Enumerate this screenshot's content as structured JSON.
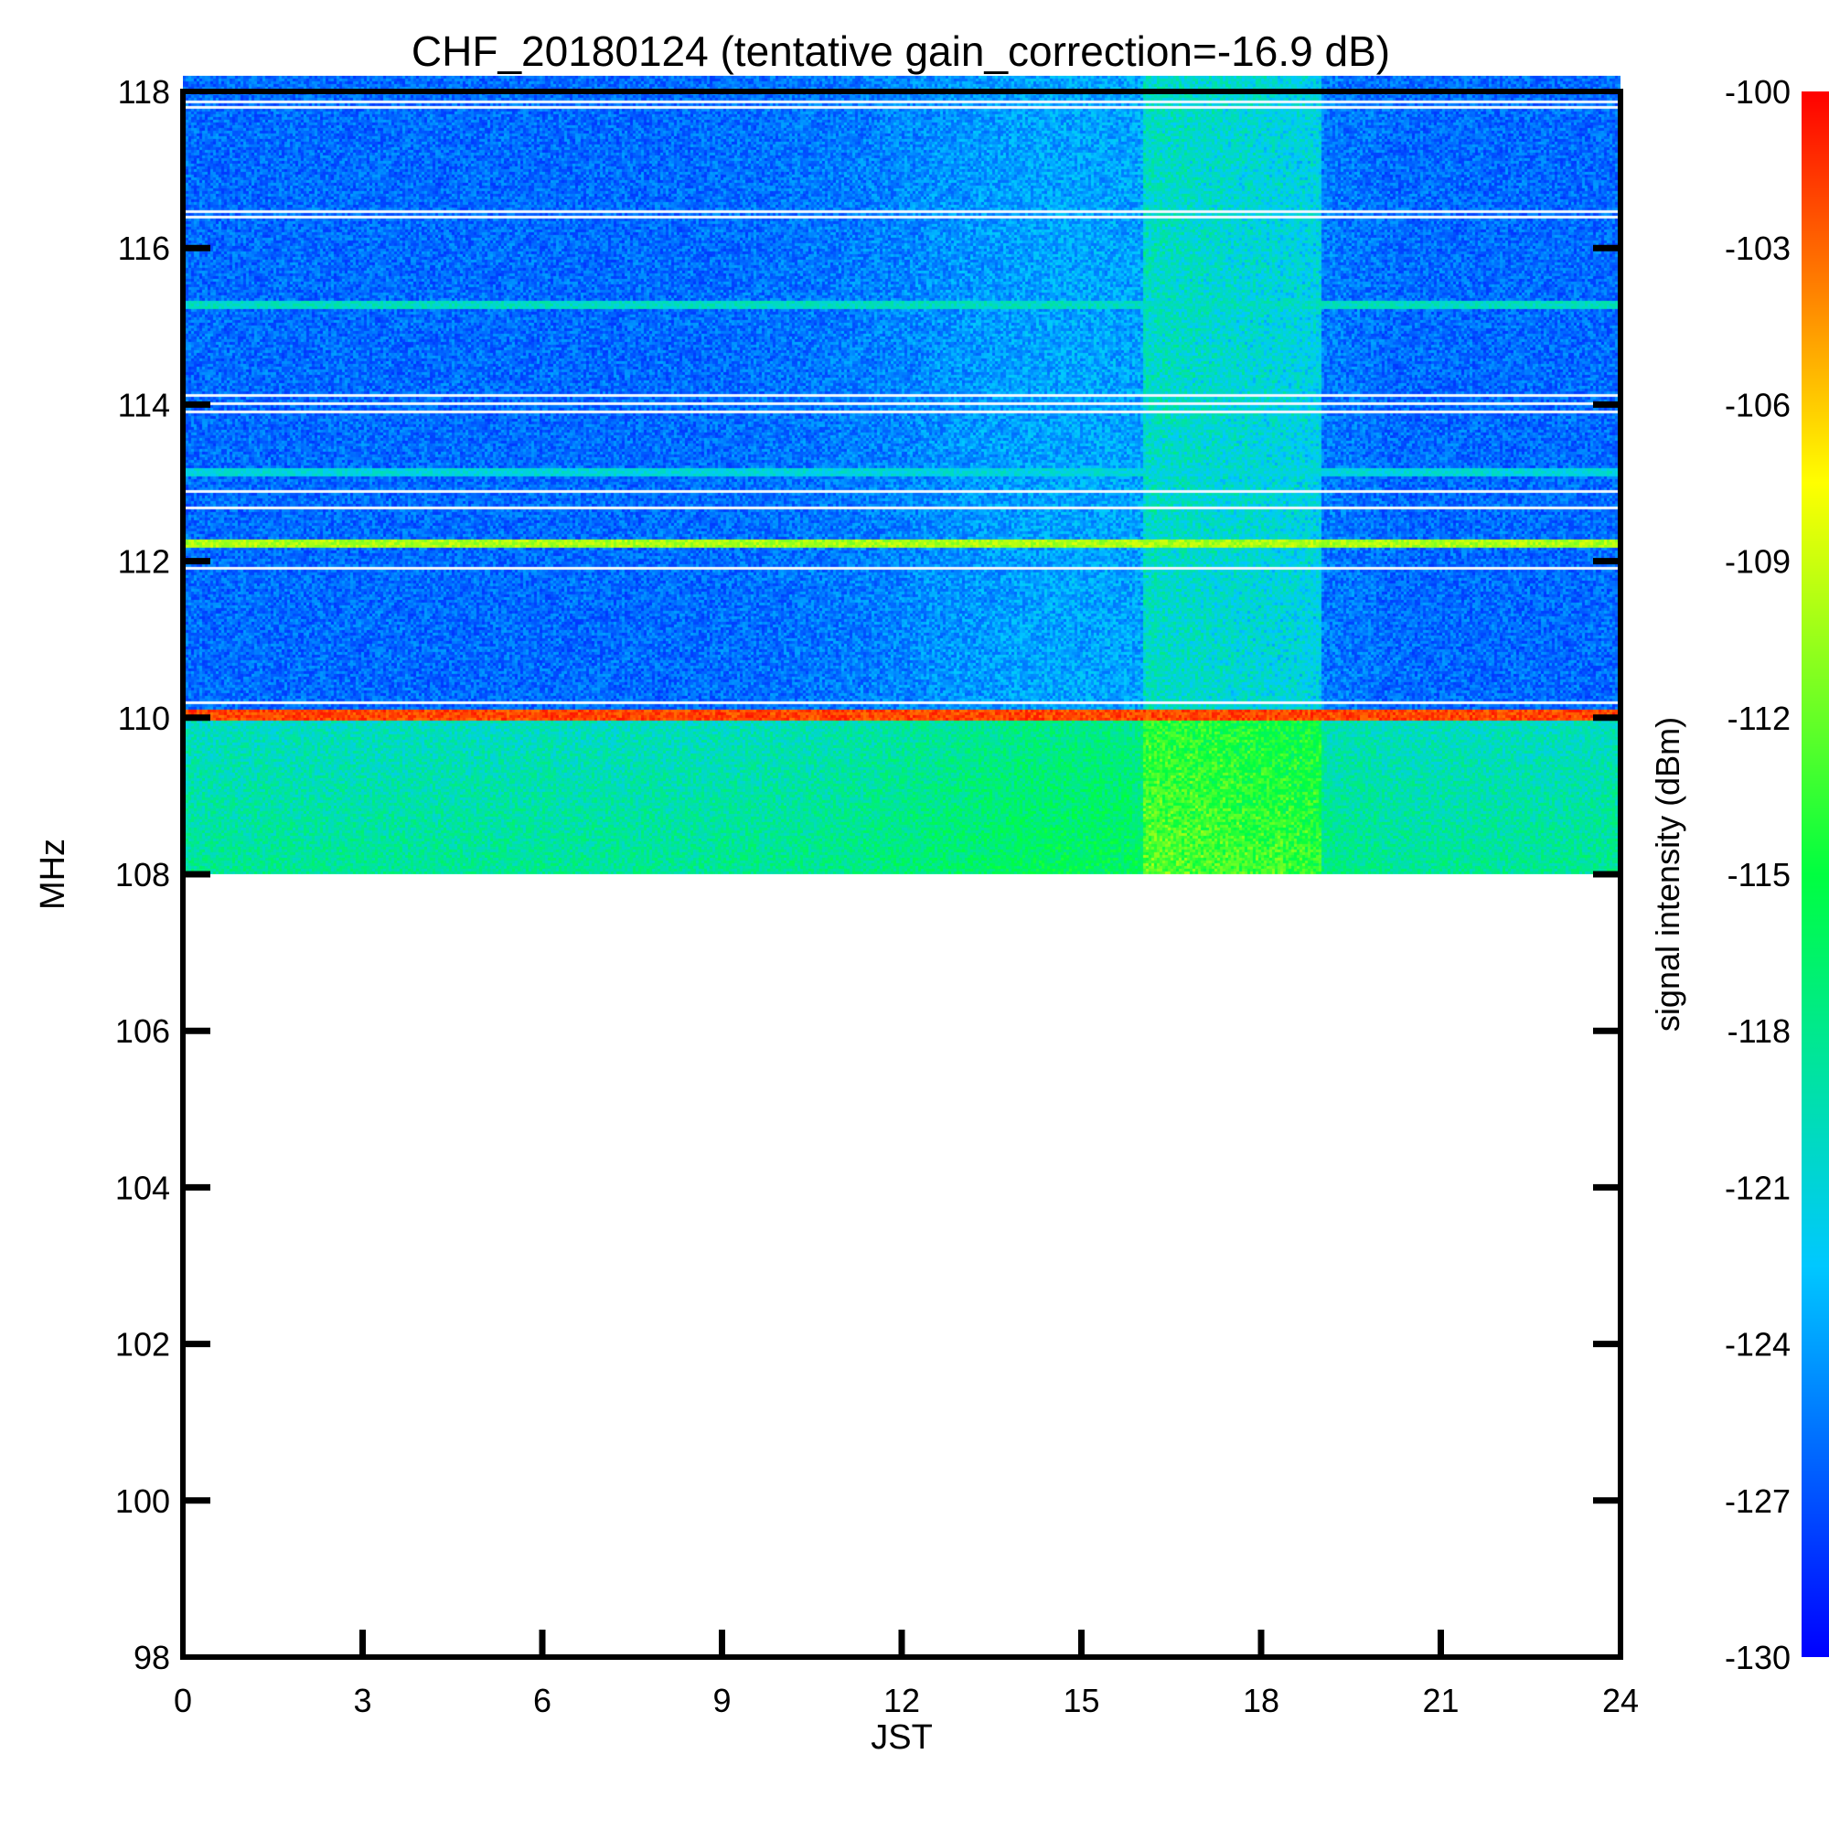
{
  "chart_data": {
    "type": "heatmap",
    "title": "CHF_20180124 (tentative gain_correction=-16.9 dB)",
    "xlabel": "JST",
    "ylabel": "MHz",
    "xlim": [
      0,
      24
    ],
    "ylim": [
      98,
      118
    ],
    "x_ticks": [
      "0",
      "3",
      "6",
      "9",
      "12",
      "15",
      "18",
      "21",
      "24"
    ],
    "y_ticks": [
      "98",
      "100",
      "102",
      "104",
      "106",
      "108",
      "110",
      "112",
      "114",
      "116",
      "118"
    ],
    "data_extent": {
      "x": [
        0,
        24
      ],
      "y": [
        108,
        118.2
      ]
    },
    "colorbar": {
      "label": "signal intensity (dBm)",
      "min": -130,
      "max": -100,
      "ticks": [
        "-100",
        "-103",
        "-106",
        "-109",
        "-112",
        "-115",
        "-118",
        "-121",
        "-124",
        "-127",
        "-130"
      ],
      "colormap": "jet"
    },
    "features": [
      {
        "type": "strong-line",
        "freq_mhz": 110.05,
        "level_dbm": -102
      },
      {
        "type": "line",
        "freq_mhz": 112.25,
        "level_dbm": -110
      },
      {
        "type": "line",
        "freq_mhz": 115.3,
        "level_dbm": -120
      },
      {
        "type": "line",
        "freq_mhz": 113.15,
        "level_dbm": -121
      },
      {
        "type": "enhancement",
        "jst": [
          16,
          19
        ],
        "freq_mhz": [
          108,
          118
        ],
        "level_dbm": -117
      }
    ],
    "background_level_dbm": {
      "upper_band": -126,
      "lower_band": -120
    }
  }
}
